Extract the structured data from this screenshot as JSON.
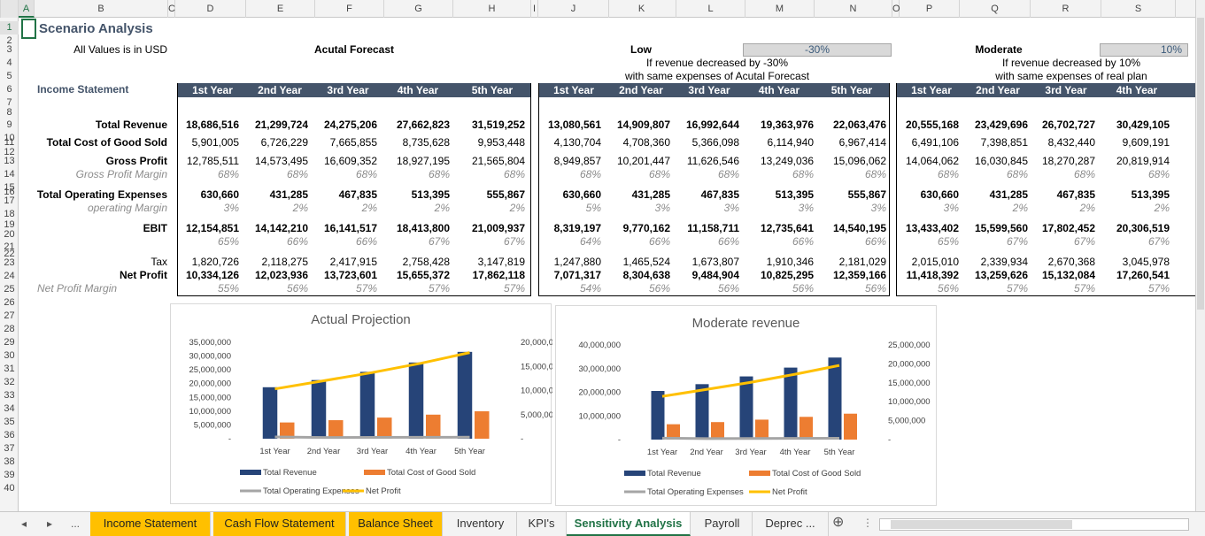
{
  "sheet": {
    "title": "Scenario Analysis",
    "subtitle": "All Values is in USD",
    "section": "Income Statement",
    "columns": [
      "A",
      "B",
      "C",
      "D",
      "E",
      "F",
      "G",
      "H",
      "I",
      "J",
      "K",
      "L",
      "M",
      "N",
      "O",
      "P",
      "Q",
      "R",
      "S"
    ],
    "rows": [
      "1",
      "2",
      "3",
      "4",
      "5",
      "6",
      "7",
      "8",
      "9",
      "10",
      "11",
      "12",
      "13",
      "14",
      "15",
      "16",
      "17",
      "18",
      "19",
      "20",
      "21",
      "22",
      "23",
      "24",
      "25",
      "26",
      "27",
      "28",
      "29",
      "30",
      "31",
      "32",
      "33",
      "34",
      "35",
      "36",
      "37",
      "38",
      "39",
      "40"
    ]
  },
  "labels": {
    "total_revenue": "Total Revenue",
    "total_cogs": "Total Cost of Good Sold",
    "gross_profit": "Gross Profit",
    "gross_margin": "Gross Profit Margin",
    "total_opex": "Total Operating Expenses",
    "op_margin": "operating Margin",
    "ebit": "EBIT",
    "tax": "Tax",
    "net_profit": "Net Profit",
    "net_margin": "Net Profit Margin"
  },
  "years": [
    "1st Year",
    "2nd Year",
    "3rd Year",
    "4th Year",
    "5th Year"
  ],
  "scenarios": {
    "actual": {
      "title": "Acutal Forecast",
      "revenue": [
        "18,686,516",
        "21,299,724",
        "24,275,206",
        "27,662,823",
        "31,519,252"
      ],
      "cogs": [
        "5,901,005",
        "6,726,229",
        "7,665,855",
        "8,735,628",
        "9,953,448"
      ],
      "gross": [
        "12,785,511",
        "14,573,495",
        "16,609,352",
        "18,927,195",
        "21,565,804"
      ],
      "gross_margin": [
        "68%",
        "68%",
        "68%",
        "68%",
        "68%"
      ],
      "opex": [
        "630,660",
        "431,285",
        "467,835",
        "513,395",
        "555,867"
      ],
      "op_margin": [
        "3%",
        "2%",
        "2%",
        "2%",
        "2%"
      ],
      "ebit": [
        "12,154,851",
        "14,142,210",
        "16,141,517",
        "18,413,800",
        "21,009,937"
      ],
      "ebit_margin": [
        "65%",
        "66%",
        "66%",
        "67%",
        "67%"
      ],
      "tax": [
        "1,820,726",
        "2,118,275",
        "2,417,915",
        "2,758,428",
        "3,147,819"
      ],
      "net": [
        "10,334,126",
        "12,023,936",
        "13,723,601",
        "15,655,372",
        "17,862,118"
      ],
      "net_margin": [
        "55%",
        "56%",
        "57%",
        "57%",
        "57%"
      ]
    },
    "low": {
      "title": "Low",
      "pct": "-30%",
      "desc1": "If revenue decreased by -30%",
      "desc2": "with same expenses of Acutal Forecast",
      "revenue": [
        "13,080,561",
        "14,909,807",
        "16,992,644",
        "19,363,976",
        "22,063,476"
      ],
      "cogs": [
        "4,130,704",
        "4,708,360",
        "5,366,098",
        "6,114,940",
        "6,967,414"
      ],
      "gross": [
        "8,949,857",
        "10,201,447",
        "11,626,546",
        "13,249,036",
        "15,096,062"
      ],
      "gross_margin": [
        "68%",
        "68%",
        "68%",
        "68%",
        "68%"
      ],
      "opex": [
        "630,660",
        "431,285",
        "467,835",
        "513,395",
        "555,867"
      ],
      "op_margin": [
        "5%",
        "3%",
        "3%",
        "3%",
        "3%"
      ],
      "ebit": [
        "8,319,197",
        "9,770,162",
        "11,158,711",
        "12,735,641",
        "14,540,195"
      ],
      "ebit_margin": [
        "64%",
        "66%",
        "66%",
        "66%",
        "66%"
      ],
      "tax": [
        "1,247,880",
        "1,465,524",
        "1,673,807",
        "1,910,346",
        "2,181,029"
      ],
      "net": [
        "7,071,317",
        "8,304,638",
        "9,484,904",
        "10,825,295",
        "12,359,166"
      ],
      "net_margin": [
        "54%",
        "56%",
        "56%",
        "56%",
        "56%"
      ]
    },
    "moderate": {
      "title": "Moderate",
      "pct": "10%",
      "desc1": "If revenue decreased by 10%",
      "desc2": "with same expenses of real plan",
      "revenue": [
        "20,555,168",
        "23,429,696",
        "26,702,727",
        "30,429,105"
      ],
      "cogs": [
        "6,491,106",
        "7,398,851",
        "8,432,440",
        "9,609,191"
      ],
      "gross": [
        "14,064,062",
        "16,030,845",
        "18,270,287",
        "20,819,914"
      ],
      "gross_margin": [
        "68%",
        "68%",
        "68%",
        "68%"
      ],
      "opex": [
        "630,660",
        "431,285",
        "467,835",
        "513,395"
      ],
      "op_margin": [
        "3%",
        "2%",
        "2%",
        "2%"
      ],
      "ebit": [
        "13,433,402",
        "15,599,560",
        "17,802,452",
        "20,306,519"
      ],
      "ebit_margin": [
        "65%",
        "67%",
        "67%",
        "67%"
      ],
      "tax": [
        "2,015,010",
        "2,339,934",
        "2,670,368",
        "3,045,978"
      ],
      "net": [
        "11,418,392",
        "13,259,626",
        "15,132,084",
        "17,260,541"
      ],
      "net_margin": [
        "56%",
        "57%",
        "57%",
        "57%"
      ]
    }
  },
  "colors": {
    "revenue": "#264478",
    "cogs": "#ed7d31",
    "opex": "#a5a5a5",
    "net": "#ffc000"
  },
  "chart_data": [
    {
      "type": "bar",
      "title": "Actual Projection",
      "categories": [
        "1st Year",
        "2nd Year",
        "3rd Year",
        "4th Year",
        "5th Year"
      ],
      "series": [
        {
          "name": "Total Revenue",
          "values": [
            18686516,
            21299724,
            24275206,
            27662823,
            31519252
          ],
          "axis": "left"
        },
        {
          "name": "Total Cost of Good Sold",
          "values": [
            5901005,
            6726229,
            7665855,
            8735628,
            9953448
          ],
          "axis": "left"
        },
        {
          "name": "Total Operating Expenses",
          "values": [
            630660,
            431285,
            467835,
            513395,
            555867
          ],
          "axis": "left",
          "kind": "line"
        },
        {
          "name": "Net Profit",
          "values": [
            10334126,
            12023936,
            13723601,
            15655372,
            17862118
          ],
          "axis": "right",
          "kind": "line"
        }
      ],
      "ylim": [
        0,
        35000000
      ],
      "yticks": [
        "35,000,000",
        "30,000,000",
        "25,000,000",
        "20,000,000",
        "15,000,000",
        "10,000,000",
        "5,000,000",
        "-"
      ],
      "y2lim": [
        0,
        20000000
      ],
      "y2ticks": [
        "20,000,000",
        "15,000,000",
        "10,000,000",
        "5,000,000",
        "-"
      ],
      "legend": "bottom"
    },
    {
      "type": "bar",
      "title": "Moderate revenue",
      "categories": [
        "1st Year",
        "2nd Year",
        "3rd Year",
        "4th Year",
        "5th Year"
      ],
      "series": [
        {
          "name": "Total Revenue",
          "values": [
            20555168,
            23429696,
            26702727,
            30429105,
            34675700
          ],
          "axis": "left"
        },
        {
          "name": "Total Cost of Good Sold",
          "values": [
            6491106,
            7398851,
            8432440,
            9609191,
            10950000
          ],
          "axis": "left"
        },
        {
          "name": "Total Operating Expenses",
          "values": [
            630660,
            431285,
            467835,
            513395,
            555867
          ],
          "axis": "left",
          "kind": "line"
        },
        {
          "name": "Net Profit",
          "values": [
            11418392,
            13259626,
            15132084,
            17260541,
            19600000
          ],
          "axis": "right",
          "kind": "line"
        }
      ],
      "ylim": [
        0,
        40000000
      ],
      "yticks": [
        "40,000,000",
        "30,000,000",
        "20,000,000",
        "10,000,000",
        "-"
      ],
      "y2lim": [
        0,
        25000000
      ],
      "y2ticks": [
        "25,000,000",
        "20,000,000",
        "15,000,000",
        "10,000,000",
        "5,000,000",
        "-"
      ],
      "legend": "bottom"
    }
  ],
  "tabs": [
    {
      "label": "Income Statement",
      "style": "y"
    },
    {
      "label": "Cash Flow Statement",
      "style": "y"
    },
    {
      "label": "Balance Sheet",
      "style": "y"
    },
    {
      "label": "Inventory",
      "style": ""
    },
    {
      "label": "KPI's",
      "style": ""
    },
    {
      "label": "Sensitivity Analysis",
      "style": "act"
    },
    {
      "label": "Payroll",
      "style": ""
    },
    {
      "label": "Deprec ...",
      "style": ""
    }
  ],
  "nav": {
    "prev": "◂",
    "next": "▸",
    "more": "...",
    "add": "⊕",
    "menu": "⋮"
  }
}
